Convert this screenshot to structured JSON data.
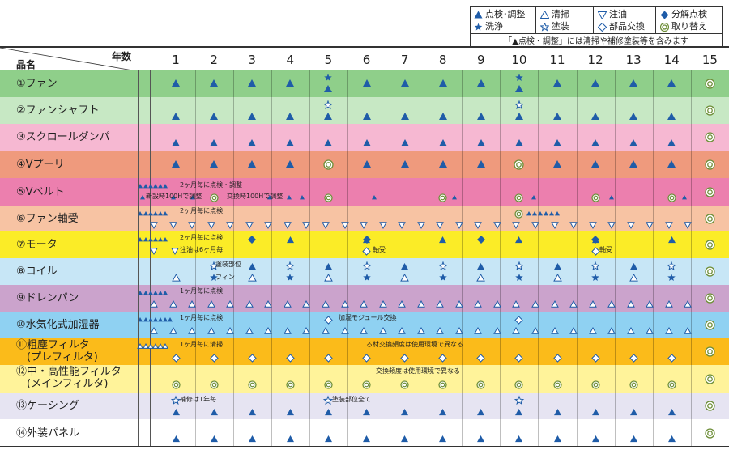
{
  "legend": {
    "items": [
      {
        "symbol": "tri_fill",
        "label": "点検･調整"
      },
      {
        "symbol": "tri_open",
        "label": "清掃"
      },
      {
        "symbol": "down_open",
        "label": "注油"
      },
      {
        "symbol": "diamond_fill",
        "label": "分解点検"
      },
      {
        "symbol": "star_fill",
        "label": "洗浄"
      },
      {
        "symbol": "star_open",
        "label": "塗装"
      },
      {
        "symbol": "diamond_open",
        "label": "部品交換"
      },
      {
        "symbol": "double_circle",
        "label": "取り替え"
      }
    ],
    "note": "「▲点検・調整」には清掃や補修塗装等を含みます"
  },
  "header": {
    "item_label": "品名",
    "year_label": "年数",
    "years": [
      "1",
      "2",
      "3",
      "4",
      "5",
      "6",
      "7",
      "8",
      "9",
      "10",
      "11",
      "12",
      "13",
      "14",
      "15"
    ]
  },
  "colors": {
    "mark": "#1f5ca8",
    "ring": "#6f8f3a"
  },
  "rows": [
    {
      "label": "①ファン",
      "color": "#8fcf8a"
    },
    {
      "label": "②ファンシャフト",
      "color": "#c7e8c4"
    },
    {
      "label": "③スクロールダンパ",
      "color": "#f6b8d2"
    },
    {
      "label": "④Vプーリ",
      "color": "#ef9a7d"
    },
    {
      "label": "⑤Vベルト",
      "color": "#ec7fae"
    },
    {
      "label": "⑥ファン軸受",
      "color": "#f7c3a3"
    },
    {
      "label": "⑦モータ",
      "color": "#fbec27"
    },
    {
      "label": "⑧コイル",
      "color": "#c7e6f6"
    },
    {
      "label": "⑨ドレンパン",
      "color": "#cba3cc"
    },
    {
      "label": "⑩水気化式加湿器",
      "color": "#8fd1f2"
    },
    {
      "label": "⑪粗塵フィルタ\n　(プレフィルタ)",
      "color": "#fbbb1a"
    },
    {
      "label": "⑫中・高性能フィルタ\n　(メインフィルタ)",
      "color": "#fff39a"
    },
    {
      "label": "⑬ケーシング",
      "color": "#e6e4f2"
    },
    {
      "label": "⑭外装パネル",
      "color": "#ffffff"
    }
  ],
  "notes": [
    {
      "row": 4,
      "line": 0,
      "text": "2ヶ月毎に点検・調整"
    },
    {
      "row": 4,
      "line": 1,
      "text": "新設時100Hで調整"
    },
    {
      "row": 4,
      "line": 1,
      "text": "交換時100Hで調整"
    },
    {
      "row": 5,
      "line": 0,
      "text": "2ヶ月毎に点検"
    },
    {
      "row": 6,
      "line": 0,
      "text": "2ヶ月毎に点検"
    },
    {
      "row": 6,
      "line": 1,
      "text": "注油は6ヶ月毎"
    },
    {
      "row": 6,
      "line": 1,
      "text": "軸受"
    },
    {
      "row": 6,
      "line": 1,
      "text": "軸受"
    },
    {
      "row": 7,
      "line": 0,
      "text": "塗装部位"
    },
    {
      "row": 7,
      "line": 1,
      "text": "フィン"
    },
    {
      "row": 8,
      "line": 0,
      "text": "1ヶ月毎に点検"
    },
    {
      "row": 9,
      "line": 0,
      "text": "1ヶ月毎に点検"
    },
    {
      "row": 9,
      "line": 0,
      "text": "加湿モジュール交換"
    },
    {
      "row": 10,
      "line": 0,
      "text": "1ヶ月毎に清掃"
    },
    {
      "row": 10,
      "line": 0,
      "text": "ろ材交換頻度は使用環境で異なる"
    },
    {
      "row": 11,
      "line": 0,
      "text": "交換頻度は使用環境で異なる"
    },
    {
      "row": 12,
      "line": 0,
      "text": "補修は1年毎"
    },
    {
      "row": 12,
      "line": 0,
      "text": "塗装部位全て"
    }
  ]
}
